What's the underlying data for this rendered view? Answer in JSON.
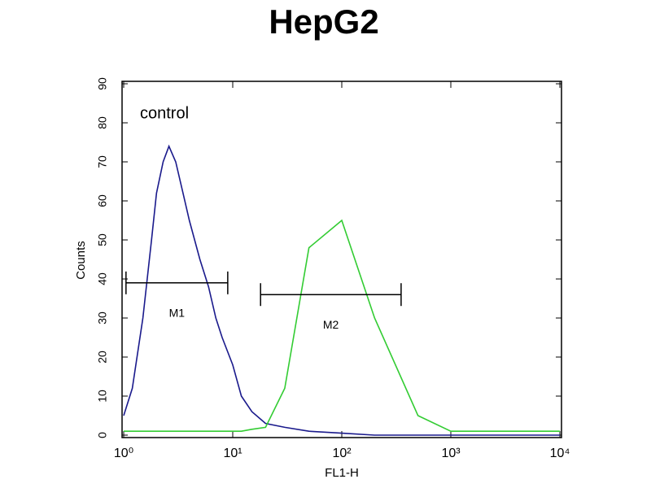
{
  "chart_data": {
    "type": "line",
    "title": "HepG2",
    "xlabel": "FL1-H",
    "ylabel": "Counts",
    "annotation": "control",
    "xscale": "log",
    "xlim": [
      1,
      10000
    ],
    "xticks": [
      {
        "value": 1,
        "label": "10⁰"
      },
      {
        "value": 10,
        "label": "10¹"
      },
      {
        "value": 100,
        "label": "10²"
      },
      {
        "value": 1000,
        "label": "10³"
      },
      {
        "value": 10000,
        "label": "10⁴"
      }
    ],
    "ylim": [
      0,
      90
    ],
    "yticks": [
      0,
      10,
      20,
      30,
      40,
      50,
      60,
      70,
      80,
      90
    ],
    "x": [
      1,
      1.2,
      1.5,
      1.8,
      2,
      2.3,
      2.6,
      3,
      3.5,
      4,
      5,
      6,
      7,
      8,
      10,
      12,
      15,
      20,
      30,
      50,
      100,
      200,
      500,
      1000,
      10000
    ],
    "series": [
      {
        "name": "control",
        "color": "#1a1a8c",
        "values": [
          5,
          12,
          30,
          50,
          62,
          70,
          74,
          70,
          62,
          55,
          45,
          38,
          30,
          25,
          18,
          10,
          6,
          3,
          2,
          1,
          0.5,
          0,
          0,
          0,
          0
        ]
      },
      {
        "name": "HepG2",
        "color": "#33cc33",
        "values": [
          1,
          1,
          1,
          1,
          1,
          1,
          1,
          1,
          1,
          1,
          1,
          1,
          1,
          1,
          1,
          1,
          1.5,
          2,
          12,
          48,
          55,
          30,
          5,
          1,
          1
        ]
      }
    ],
    "markers": [
      {
        "label": "M1",
        "range": [
          1.05,
          9
        ],
        "y": 39
      },
      {
        "label": "M2",
        "range": [
          18,
          350
        ],
        "y": 36
      }
    ]
  }
}
